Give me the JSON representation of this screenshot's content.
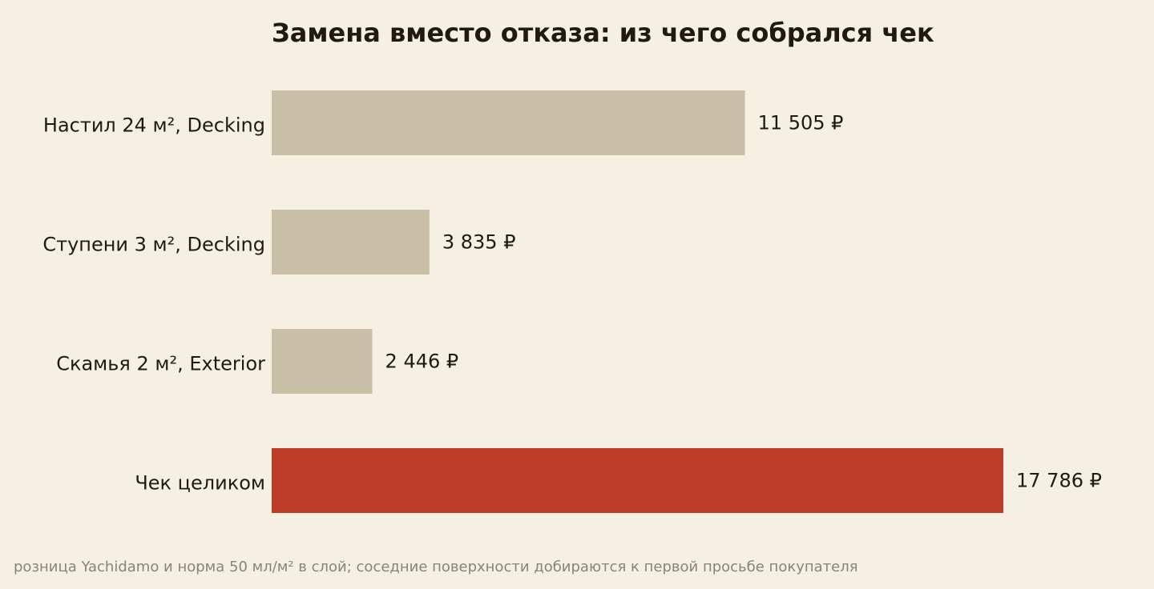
{
  "chart_data": {
    "type": "bar",
    "orientation": "horizontal",
    "title": "Замена вместо отказа: из чего собрался чек",
    "categories": [
      "Настил 24 м², Decking",
      "Ступени 3 м², Decking",
      "Скамья 2 м², Exterior",
      "Чек целиком"
    ],
    "values": [
      11505,
      3835,
      2446,
      17786
    ],
    "value_labels": [
      "11 505 ₽",
      "3 835 ₽",
      "2 446 ₽",
      "17 786 ₽"
    ],
    "bar_colors": [
      "#c9bfa7",
      "#c9bfa7",
      "#c9bfa7",
      "#bc3d28"
    ],
    "xlim": [
      0,
      17786
    ],
    "grid": false,
    "legend": "none"
  },
  "footnote": "розница Yachidamo и норма 50 мл/м² в слой; соседние поверхности добираются к первой просьбе покупателя"
}
